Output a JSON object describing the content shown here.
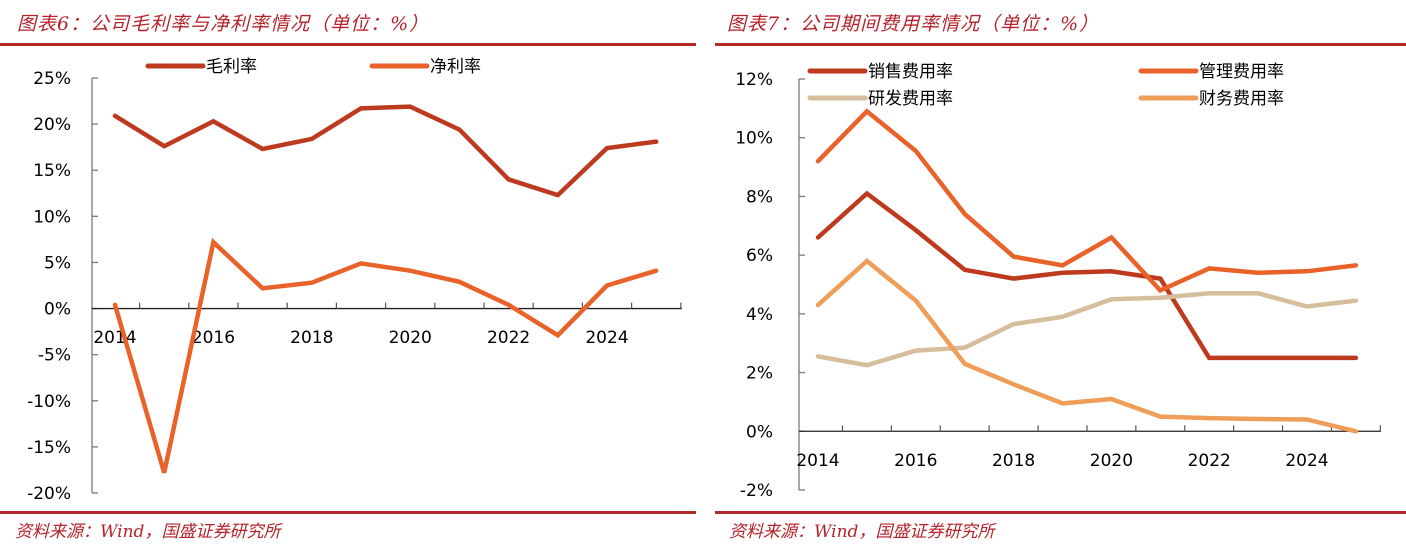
{
  "chart_data": [
    {
      "id": "left",
      "type": "line",
      "title": "图表6：公司毛利率与净利率情况（单位：%）",
      "source": "资料来源：Wind，国盛证券研究所",
      "x": [
        2014,
        2015,
        2016,
        2017,
        2018,
        2019,
        2020,
        2021,
        2022,
        2023,
        2024,
        2025
      ],
      "x_tick_labels": [
        "2014",
        "2016",
        "2018",
        "2020",
        "2022",
        "2024"
      ],
      "ylim": [
        -20,
        25
      ],
      "y_ticks": [
        25,
        20,
        15,
        10,
        5,
        0,
        -5,
        -10,
        -15,
        -20
      ],
      "y_tick_labels": [
        "25%",
        "20%",
        "15%",
        "10%",
        "5%",
        "0%",
        "-5%",
        "-10%",
        "-15%",
        "-20%"
      ],
      "xlabel": "",
      "ylabel": "",
      "grid": false,
      "legend_position": "top",
      "series": [
        {
          "name": "毛利率",
          "color": "#BE3A1E",
          "values": [
            20.9,
            17.6,
            20.3,
            17.3,
            18.4,
            21.7,
            21.9,
            19.4,
            14.0,
            12.3,
            17.4,
            18.1
          ]
        },
        {
          "name": "净利率",
          "color": "#E8622A",
          "values": [
            0.4,
            -17.8,
            7.2,
            2.2,
            2.8,
            4.9,
            4.1,
            2.9,
            0.4,
            -2.9,
            2.5,
            4.1
          ]
        }
      ]
    },
    {
      "id": "right",
      "type": "line",
      "title": "图表7：公司期间费用率情况（单位：%）",
      "source": "资料来源：Wind，国盛证券研究所",
      "x": [
        2014,
        2015,
        2016,
        2017,
        2018,
        2019,
        2020,
        2021,
        2022,
        2023,
        2024,
        2025
      ],
      "x_tick_labels": [
        "2014",
        "2016",
        "2018",
        "2020",
        "2022",
        "2024"
      ],
      "ylim": [
        -2,
        12
      ],
      "y_ticks": [
        12,
        10,
        8,
        6,
        4,
        2,
        0,
        -2
      ],
      "y_tick_labels": [
        "12%",
        "10%",
        "8%",
        "6%",
        "4%",
        "2%",
        "0%",
        "-2%"
      ],
      "xlabel": "",
      "ylabel": "",
      "grid": false,
      "legend_position": "top",
      "series": [
        {
          "name": "销售费用率",
          "color": "#BE3A1E",
          "values": [
            6.6,
            8.1,
            6.85,
            5.5,
            5.2,
            5.4,
            5.45,
            5.2,
            2.5,
            2.5,
            2.5,
            2.5
          ]
        },
        {
          "name": "管理费用率",
          "color": "#E8622A",
          "values": [
            9.2,
            10.9,
            9.55,
            7.4,
            5.95,
            5.65,
            6.6,
            4.8,
            5.55,
            5.4,
            5.45,
            5.65
          ]
        },
        {
          "name": "研发费用率",
          "color": "#D6BD9C",
          "values": [
            2.55,
            2.25,
            2.75,
            2.85,
            3.65,
            3.9,
            4.5,
            4.55,
            4.7,
            4.7,
            4.25,
            4.45
          ]
        },
        {
          "name": "财务费用率",
          "color": "#EE9E58",
          "values": [
            4.3,
            5.8,
            4.45,
            2.3,
            1.6,
            0.95,
            1.1,
            0.5,
            0.45,
            0.42,
            0.4,
            0.0
          ]
        }
      ]
    }
  ]
}
